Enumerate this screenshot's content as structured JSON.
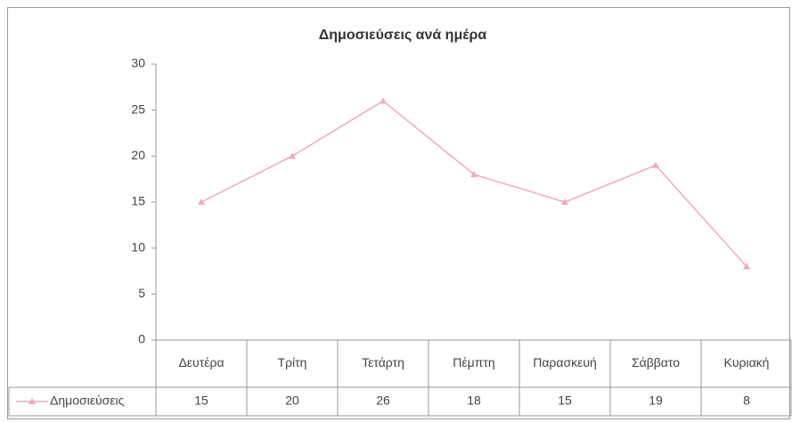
{
  "chart_data": {
    "type": "line",
    "title": "Δημοσιεύσεις ανά ημέρα",
    "categories": [
      "Δευτέρα",
      "Τρίτη",
      "Τετάρτη",
      "Πέμπτη",
      "Παρασκευή",
      "Σάββατο",
      "Κυριακή"
    ],
    "series": [
      {
        "name": "Δημοσιεύσεις",
        "color": "#f2a9bf",
        "values": [
          15,
          20,
          26,
          18,
          15,
          19,
          8
        ]
      }
    ],
    "ylim": [
      0,
      30
    ],
    "yticks": [
      0,
      5,
      10,
      15,
      20,
      25,
      30
    ],
    "grid": false,
    "data_table": true
  }
}
